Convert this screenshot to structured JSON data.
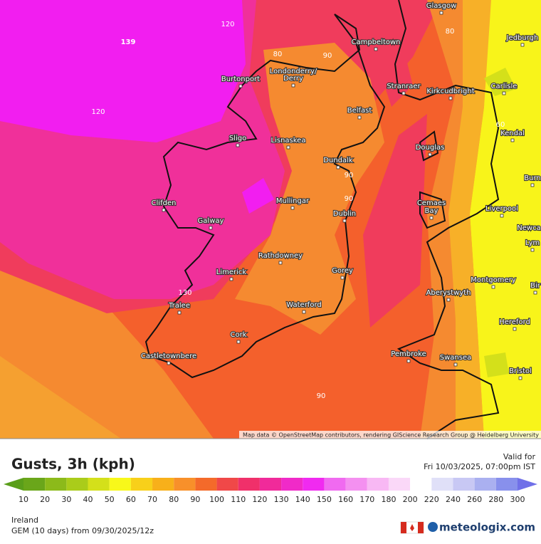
{
  "map": {
    "contour_labels": [
      139,
      120,
      120,
      90,
      80,
      90,
      90,
      80,
      60,
      130,
      90
    ],
    "places": [
      "Glasgow",
      "Jedburgh",
      "Campbeltown",
      "Londonderry/",
      "Derry",
      "Burtonport",
      "Stranraer",
      "Kirkcudbright",
      "Carlisle",
      "Belfast",
      "Sligo",
      "Lisnaskea",
      "Douglas",
      "Kendal",
      "Dundalk",
      "Burn",
      "Clifden",
      "Mullingar",
      "Cemaes",
      "Bay",
      "Liverpool",
      "Dublin",
      "Galway",
      "Newca",
      "Lym",
      "Rathdowney",
      "Limerick",
      "Gorey",
      "Montgomery",
      "Bir",
      "Aberystwyth",
      "Tralee",
      "Waterford",
      "Hereford",
      "Cork",
      "Pembroke",
      "Castletownbere",
      "Swansea",
      "Bristol"
    ],
    "attribution": "Map data © OpenStreetMap contributors, rendering GIScience Research Group @ Heidelberg University"
  },
  "legend": {
    "title": "Gusts, 3h (kph)",
    "valid_label": "Valid for",
    "valid_time": "Fri 10/03/2025, 07:00pm IST",
    "ticks": [
      10,
      20,
      30,
      40,
      50,
      60,
      70,
      80,
      90,
      100,
      110,
      120,
      130,
      140,
      150,
      160,
      170,
      180,
      200,
      220,
      240,
      260,
      280,
      300
    ],
    "colors": [
      "#5a9e1a",
      "#6aa61a",
      "#8cba1a",
      "#aacc1a",
      "#d4e01a",
      "#f8f81a",
      "#f8d01a",
      "#f8b01a",
      "#f8902a",
      "#f46a2a",
      "#f04848",
      "#f0306a",
      "#f02a9a",
      "#f02ac8",
      "#f02af0",
      "#f06af0",
      "#f490f0",
      "#f8b8f4",
      "#fad8f8",
      "#ffffff",
      "#e0e0f8",
      "#c8c8f4",
      "#aab0f0",
      "#8890ec",
      "#7070e8"
    ]
  },
  "footer": {
    "region": "Ireland",
    "model": "GEM (10 days) from 09/30/2025/12z",
    "brand": "meteologix.com"
  }
}
